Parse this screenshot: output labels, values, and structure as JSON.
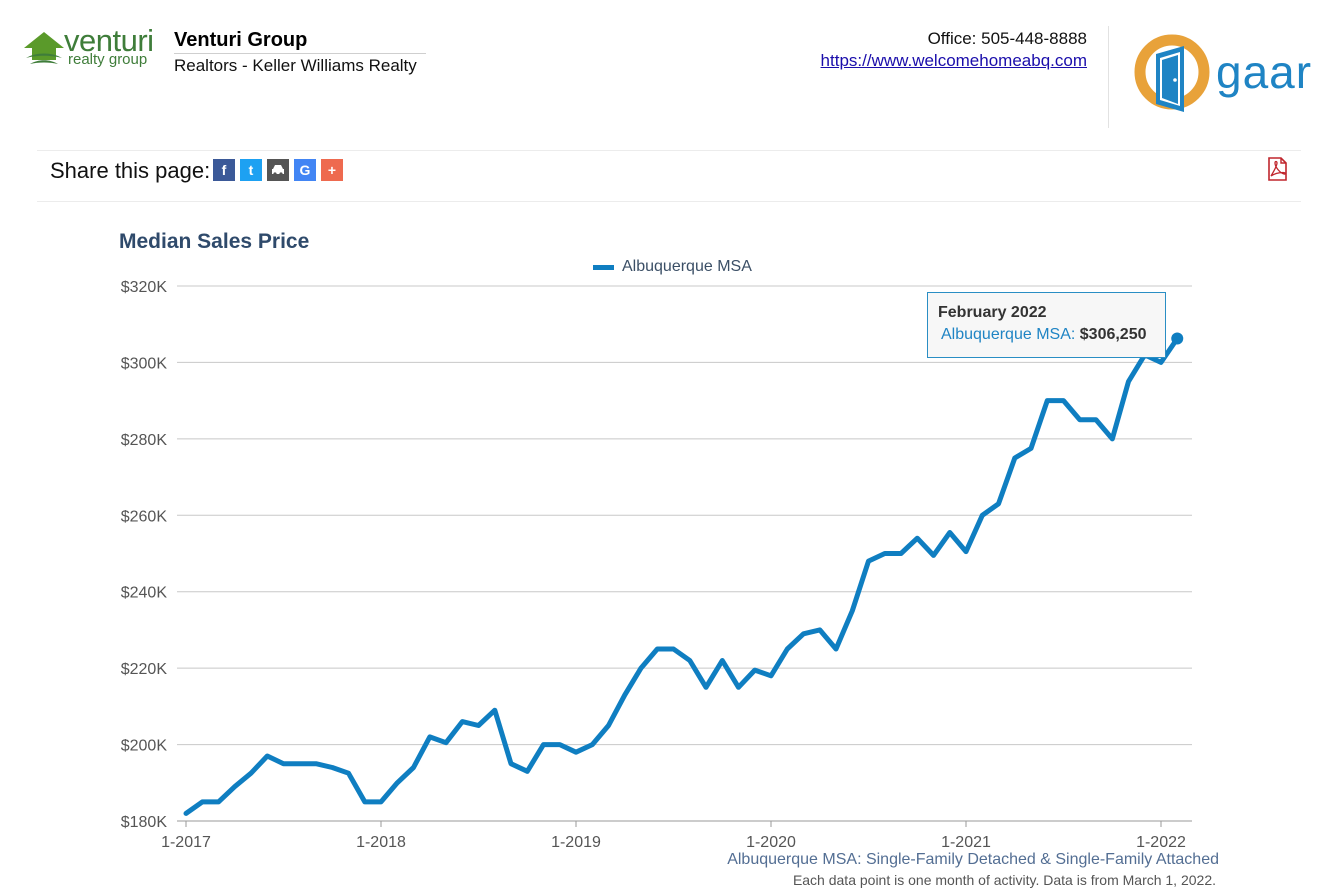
{
  "header": {
    "logo_word": "venturi",
    "logo_sub": "realty group",
    "agent_name": "Venturi Group",
    "agent_company": "Realtors - Keller Williams Realty",
    "office_phone": "Office: 505-448-8888",
    "office_url": "https://www.welcomehomeabq.com",
    "partner_logo_word": "gaar"
  },
  "share": {
    "label": "Share this page:",
    "icons": [
      "facebook-icon",
      "twitter-icon",
      "car-icon",
      "google-icon",
      "plus-icon"
    ],
    "icon_glyphs": [
      "f",
      "t",
      "",
      "G",
      "+"
    ],
    "icon_colors": [
      "#3b5998",
      "#1da1f2",
      "#555555",
      "#4285f4",
      "#ee6a4f"
    ]
  },
  "chart_data": {
    "type": "line",
    "title": "Median Sales Price",
    "series": [
      {
        "name": "Albuquerque MSA",
        "color": "#0f7ec1",
        "values": [
          182000,
          185000,
          185000,
          189000,
          192500,
          197000,
          195000,
          195000,
          195000,
          194000,
          192500,
          185000,
          185000,
          190000,
          194000,
          202000,
          200500,
          206000,
          205000,
          209000,
          195000,
          193000,
          200000,
          200000,
          198000,
          200000,
          205000,
          213000,
          220000,
          225000,
          225000,
          222000,
          215000,
          222000,
          215000,
          219500,
          218000,
          225000,
          229000,
          230000,
          225000,
          235000,
          248000,
          250000,
          250000,
          254000,
          249500,
          255500,
          250500,
          260000,
          263000,
          275000,
          277500,
          290000,
          290000,
          285000,
          285000,
          280000,
          295000,
          302000,
          300000,
          306250
        ]
      }
    ],
    "x_ticks": [
      "1-2017",
      "1-2018",
      "1-2019",
      "1-2020",
      "1-2021",
      "1-2022"
    ],
    "y_ticks": [
      "$180K",
      "$200K",
      "$220K",
      "$240K",
      "$260K",
      "$280K",
      "$300K",
      "$320K"
    ],
    "ylim": [
      180000,
      320000
    ],
    "grid": "horizontal",
    "legend_position": "top-center",
    "tooltip": {
      "title": "February 2022",
      "series_label": "Albuquerque MSA:",
      "value": "$306,250"
    },
    "footnote_main": "Albuquerque MSA: Single-Family Detached & Single-Family Attached",
    "footnote_sub": "Each data point is one month of activity. Data is from March 1, 2022."
  }
}
